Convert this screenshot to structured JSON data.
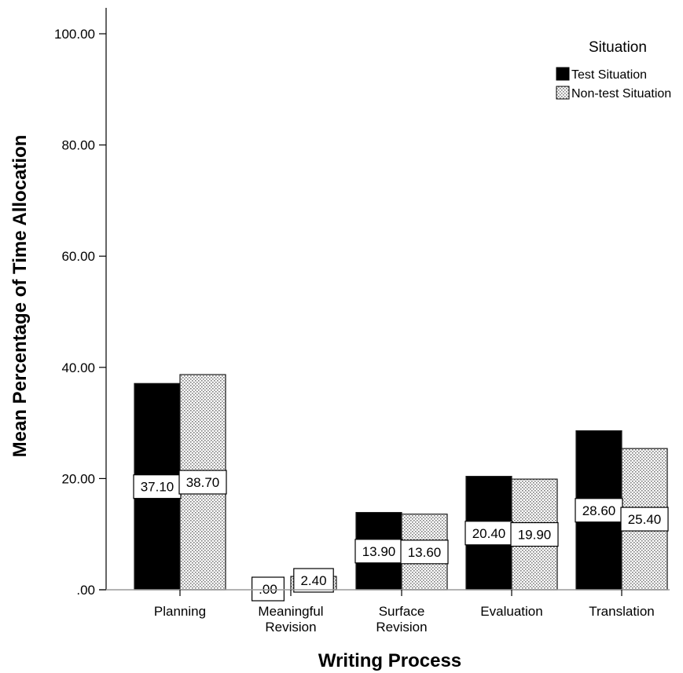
{
  "chart_data": {
    "type": "bar",
    "title": "",
    "xlabel": "Writing Process",
    "ylabel": "Mean Percentage of Time Allocation",
    "categories": [
      [
        "Planning"
      ],
      [
        "Meaningful",
        "Revision"
      ],
      [
        "Surface",
        "Revision"
      ],
      [
        "Evaluation"
      ],
      [
        "Translation"
      ]
    ],
    "series": [
      {
        "name": "Test Situation",
        "fill": "solid",
        "color": "#000000",
        "values": [
          37.1,
          0.0,
          13.9,
          20.4,
          28.6
        ],
        "labels": [
          "37.10",
          ".00",
          "13.90",
          "20.40",
          "28.60"
        ]
      },
      {
        "name": "Non-test Situation",
        "fill": "dotted",
        "color": "#ffffff",
        "values": [
          38.7,
          2.4,
          13.6,
          19.9,
          25.4
        ],
        "labels": [
          "38.70",
          "2.40",
          "13.60",
          "19.90",
          "25.40"
        ]
      }
    ],
    "ylim": [
      0,
      100
    ],
    "yticks": [
      0,
      20,
      40,
      60,
      80,
      100
    ],
    "ytick_labels": [
      ".00",
      "20.00",
      "40.00",
      "60.00",
      "80.00",
      "100.00"
    ],
    "grid": false,
    "legend": {
      "title": "Situation",
      "position": "top-right"
    }
  }
}
